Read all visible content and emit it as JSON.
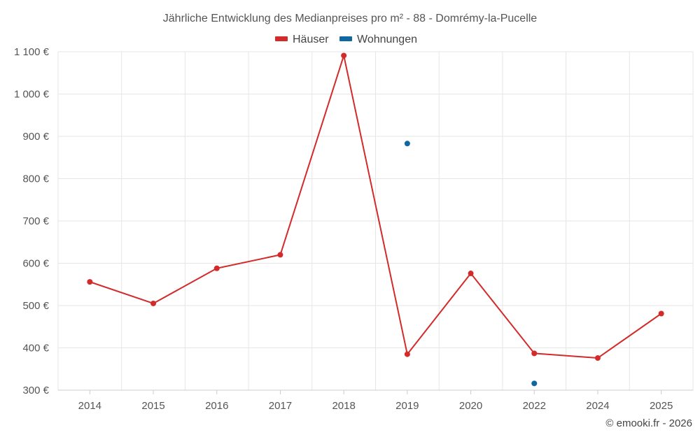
{
  "chart_data": {
    "type": "line",
    "title": "Jährliche Entwicklung des Medianpreises pro m² - 88 - Domrémy-la-Pucelle",
    "categories": [
      "2014",
      "2015",
      "2016",
      "2017",
      "2018",
      "2019",
      "2020",
      "2022",
      "2024",
      "2025"
    ],
    "series": [
      {
        "name": "Häuser",
        "color": "#d32a2a",
        "values": [
          556,
          505,
          588,
          620,
          1091,
          385,
          576,
          387,
          376,
          481
        ]
      },
      {
        "name": "Wohnungen",
        "color": "#0f67a3",
        "values": [
          null,
          null,
          null,
          null,
          null,
          883,
          null,
          316,
          null,
          null
        ]
      }
    ],
    "y_ticks": [
      "1 100 €",
      "1 000 €",
      "900 €",
      "800 €",
      "700 €",
      "600 €",
      "500 €",
      "400 €",
      "300 €"
    ],
    "y_tick_values": [
      1100,
      1000,
      900,
      800,
      700,
      600,
      500,
      400,
      300
    ],
    "ylim": [
      300,
      1100
    ],
    "grid": true,
    "legend_position": "top-center",
    "credit": "© emooki.fr - 2026"
  }
}
